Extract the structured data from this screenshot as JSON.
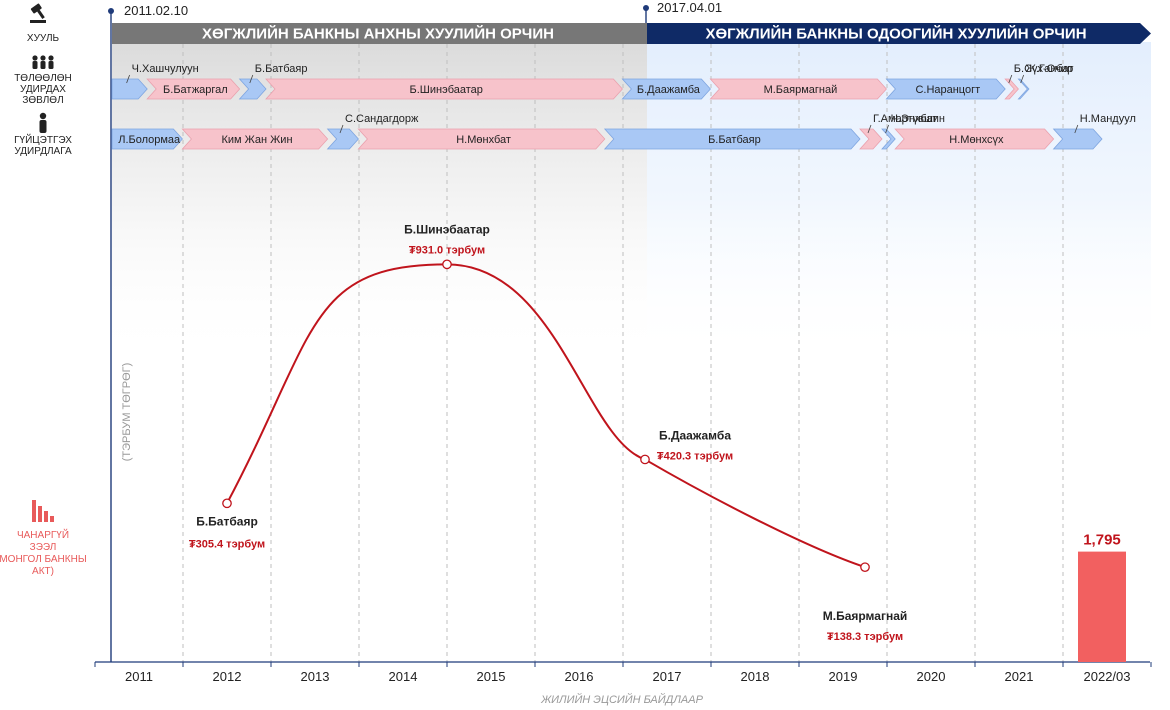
{
  "left_labels": {
    "law": "ХУУЛЬ",
    "board_l1": "ТӨЛӨӨЛӨН",
    "board_l2": "УДИРДАХ",
    "board_l3": "ЗӨВЛӨЛ",
    "exec_l1": "ГҮЙЦЭТГЭХ",
    "exec_l2": "УДИРДЛАГА",
    "npl_l1": "ЧАНАРГҮЙ",
    "npl_l2": "ЗЭЭЛ",
    "npl_l3": "МОНГОЛ БАНКНЫ",
    "npl_l4": "АКТ)",
    "y_axis_unit": "(ТЭРБУМ ТӨГРӨГ)"
  },
  "law_periods": {
    "date1": "2011.02.10",
    "date2": "2017.04.01",
    "period1": "ХӨГЖЛИЙН БАНКНЫ АНХНЫ ХУУЛИЙН ОРЧИН",
    "period2": "ХӨГЖЛИЙН БАНКНЫ ОДООГИЙН ХУУЛИЙН ОРЧИН"
  },
  "board_row": [
    {
      "name": "Ч.Хашчулуун",
      "color": "blue",
      "start": 2011.0,
      "end": 2011.4
    },
    {
      "name": "Б.Батжаргал",
      "color": "pink",
      "start": 2011.4,
      "end": 2012.45
    },
    {
      "name": "Б.Батбаяр",
      "color": "blue",
      "start": 2012.45,
      "end": 2012.75
    },
    {
      "name": "Б.Шинэбаатар",
      "color": "pink",
      "start": 2012.75,
      "end": 2016.8
    },
    {
      "name": "Б.Даажамба",
      "color": "blue",
      "start": 2016.8,
      "end": 2017.8
    },
    {
      "name": "М.Баярмагнай",
      "color": "pink",
      "start": 2017.8,
      "end": 2019.8
    },
    {
      "name": "С.Наранцогт",
      "color": "blue",
      "start": 2019.8,
      "end": 2021.15
    },
    {
      "name": "Б.Сүх-Очир",
      "color": "pink",
      "start": 2021.15,
      "end": 2021.3
    },
    {
      "name": "Ж.Ганбат",
      "color": "blue",
      "start": 2021.3,
      "end": 2021.42
    }
  ],
  "exec_row": [
    {
      "name": "Л.Болормаа",
      "color": "blue",
      "start": 2011.0,
      "end": 2011.8
    },
    {
      "name": "Ким Жан Жин",
      "color": "pink",
      "start": 2011.8,
      "end": 2013.45
    },
    {
      "name": "С.Сандагдорж",
      "color": "blue",
      "start": 2013.45,
      "end": 2013.8
    },
    {
      "name": "Н.Мөнхбат",
      "color": "pink",
      "start": 2013.8,
      "end": 2016.6
    },
    {
      "name": "Б.Батбаяр",
      "color": "blue",
      "start": 2016.6,
      "end": 2019.5
    },
    {
      "name": "Г.Амартүвшин",
      "color": "pink",
      "start": 2019.5,
      "end": 2019.75
    },
    {
      "name": "Ч.Энхбат",
      "color": "blue",
      "start": 2019.75,
      "end": 2019.9
    },
    {
      "name": "Н.Мөнхсүх",
      "color": "pink",
      "start": 2019.9,
      "end": 2021.7
    },
    {
      "name": "Н.Мандуул",
      "color": "blue",
      "start": 2021.7,
      "end": 2022.25
    }
  ],
  "chart_data": {
    "type": "line",
    "title": "",
    "xlabel": "ЖИЛИЙН ЭЦСИЙН БАЙДЛААР",
    "ylabel": "(ТЭРБУМ ТӨГРӨГ)",
    "categories": [
      "2011",
      "2012",
      "2013",
      "2014",
      "2015",
      "2016",
      "2017",
      "2018",
      "2019",
      "2020",
      "2021",
      "2022/03"
    ],
    "points": [
      {
        "year": 2012,
        "name": "Б.Батбаяр",
        "value": 305.4,
        "value_label": "₮305.4 тэрбум"
      },
      {
        "year": 2014.5,
        "name": "Б.Шинэбаатар",
        "value": 931.0,
        "value_label": "₮931.0 тэрбум"
      },
      {
        "year": 2016.75,
        "name": "Б.Даажамба",
        "value": 420.3,
        "value_label": "₮420.3 тэрбум"
      },
      {
        "year": 2019.25,
        "name": "М.Баярмагнай",
        "value": 138.3,
        "value_label": "₮138.3 тэрбум"
      }
    ],
    "bar": {
      "category": "2022/03",
      "value": 1795,
      "label": "1,795"
    },
    "ylim": [
      0,
      1800
    ],
    "colors": {
      "line": "#c0141c",
      "bar": "#f26060",
      "period1": "#777777",
      "period2": "#0f2a66",
      "blue": "#a9c8f5",
      "pink": "#f7c3cb",
      "npl": "#e85a5a"
    }
  }
}
